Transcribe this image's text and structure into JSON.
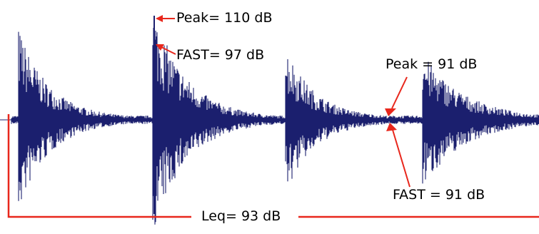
{
  "diagram": {
    "waveform_color": "#1b1f6e",
    "annotation_color": "#e8271c",
    "background": "#ffffff",
    "labels": {
      "peak_1": "Peak= 110 dB",
      "fast_1": "FAST= 97 dB",
      "peak_2": "Peak = 91 dB",
      "fast_2": "FAST = 91 dB",
      "leq": "Leq= 93 dB"
    }
  }
}
